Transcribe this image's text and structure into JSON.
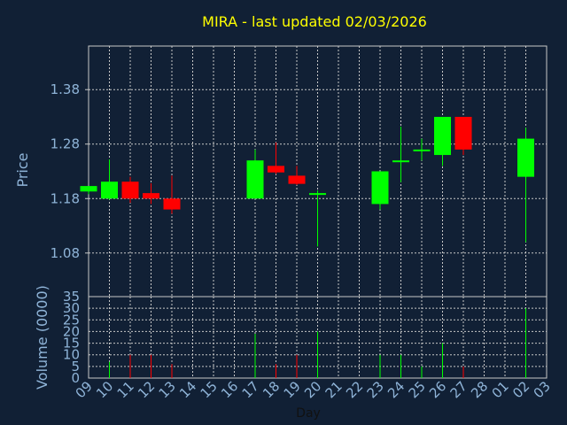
{
  "chart_data": [
    {
      "type": "candlestick",
      "title": "MIRA - last updated 02/03/2026",
      "ylabel": "Price",
      "ylim": [
        1.0,
        1.46
      ],
      "yticks": [
        "1.08",
        "1.18",
        "1.28",
        "1.38"
      ],
      "grid": true,
      "colors": {
        "up": "#00ff00",
        "down": "#ff0000",
        "grid": "#c8c8c8",
        "text": "#8fb4d8",
        "title": "#ffff00",
        "background": "#112035"
      },
      "candles": [
        {
          "x": "09",
          "open": 1.193,
          "high": 1.203,
          "low": 1.188,
          "close": 1.203
        },
        {
          "x": "10",
          "open": 1.18,
          "high": 1.252,
          "low": 1.178,
          "close": 1.211
        },
        {
          "x": "11",
          "open": 1.211,
          "high": 1.22,
          "low": 1.172,
          "close": 1.18
        },
        {
          "x": "12",
          "open": 1.19,
          "high": 1.208,
          "low": 1.17,
          "close": 1.18
        },
        {
          "x": "13",
          "open": 1.18,
          "high": 1.222,
          "low": 1.152,
          "close": 1.16
        },
        {
          "x": "17",
          "open": 1.18,
          "high": 1.27,
          "low": 1.18,
          "close": 1.25
        },
        {
          "x": "18",
          "open": 1.24,
          "high": 1.283,
          "low": 1.225,
          "close": 1.228
        },
        {
          "x": "19",
          "open": 1.222,
          "high": 1.24,
          "low": 1.205,
          "close": 1.207
        },
        {
          "x": "20",
          "open": 1.19,
          "high": 1.195,
          "low": 1.092,
          "close": 1.19
        },
        {
          "x": "23",
          "open": 1.17,
          "high": 1.23,
          "low": 1.16,
          "close": 1.23
        },
        {
          "x": "24",
          "open": 1.25,
          "high": 1.312,
          "low": 1.21,
          "close": 1.25
        },
        {
          "x": "25",
          "open": 1.27,
          "high": 1.29,
          "low": 1.25,
          "close": 1.27
        },
        {
          "x": "26",
          "open": 1.26,
          "high": 1.33,
          "low": 1.24,
          "close": 1.33
        },
        {
          "x": "27",
          "open": 1.33,
          "high": 1.33,
          "low": 1.26,
          "close": 1.27
        },
        {
          "x": "02",
          "open": 1.22,
          "high": 1.31,
          "low": 1.1,
          "close": 1.29
        }
      ]
    },
    {
      "type": "bar",
      "ylabel": "Volume (0000)",
      "xlabel": "Day",
      "ylim": [
        0,
        35
      ],
      "yticks": [
        "0",
        "5",
        "10",
        "15",
        "20",
        "25",
        "30",
        "35"
      ],
      "categories": [
        "09",
        "10",
        "11",
        "12",
        "13",
        "14",
        "15",
        "16",
        "17",
        "18",
        "19",
        "20",
        "21",
        "22",
        "23",
        "24",
        "25",
        "26",
        "27",
        "28",
        "01",
        "02",
        "03"
      ],
      "bars": [
        {
          "x": "10",
          "value": 7,
          "dir": "up"
        },
        {
          "x": "11",
          "value": 10,
          "dir": "down"
        },
        {
          "x": "12",
          "value": 10,
          "dir": "down"
        },
        {
          "x": "13",
          "value": 6,
          "dir": "down"
        },
        {
          "x": "17",
          "value": 19,
          "dir": "up"
        },
        {
          "x": "18",
          "value": 6,
          "dir": "down"
        },
        {
          "x": "19",
          "value": 10,
          "dir": "down"
        },
        {
          "x": "20",
          "value": 20,
          "dir": "up"
        },
        {
          "x": "23",
          "value": 10,
          "dir": "up"
        },
        {
          "x": "24",
          "value": 10,
          "dir": "up"
        },
        {
          "x": "25",
          "value": 5,
          "dir": "up"
        },
        {
          "x": "26",
          "value": 15,
          "dir": "up"
        },
        {
          "x": "27",
          "value": 5,
          "dir": "down"
        },
        {
          "x": "02",
          "value": 30,
          "dir": "up"
        }
      ]
    }
  ]
}
